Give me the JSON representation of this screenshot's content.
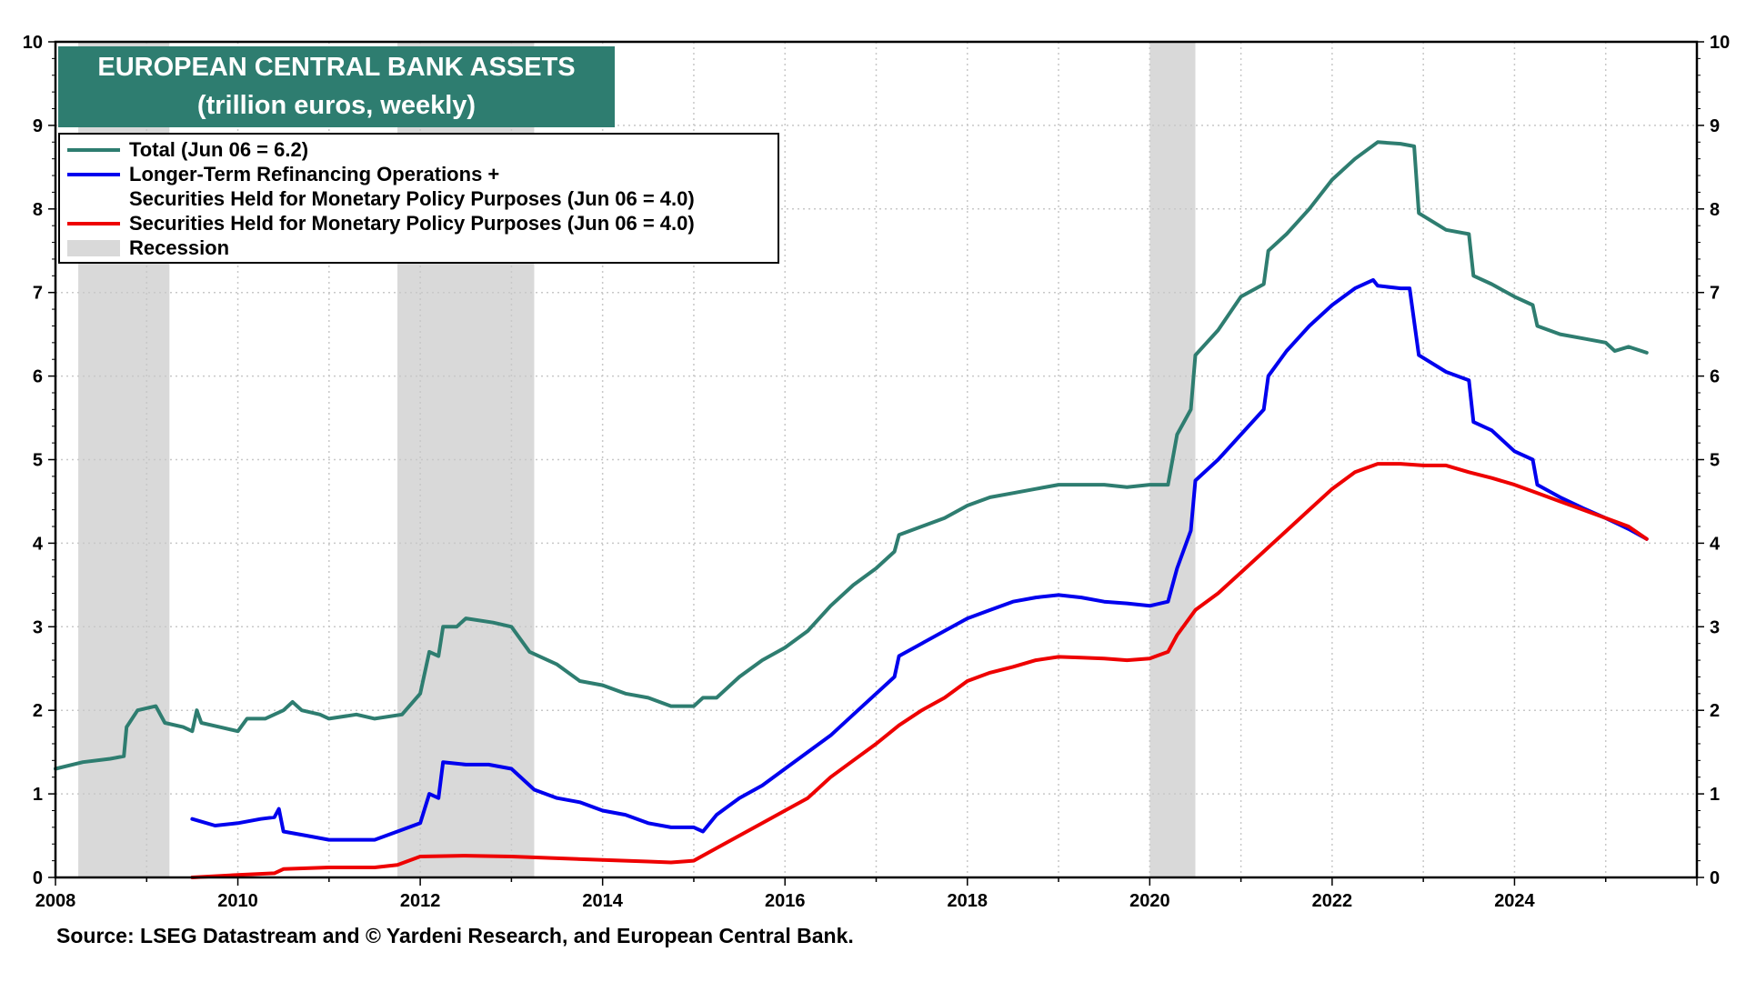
{
  "chart_data": {
    "type": "line",
    "title": "EUROPEAN CENTRAL BANK ASSETS",
    "subtitle": "(trillion euros, weekly)",
    "source": "Source: LSEG Datastream and © Yardeni Research, and European Central Bank.",
    "xlim": [
      2008,
      2026
    ],
    "ylim": [
      0,
      10
    ],
    "x_ticks": [
      "2008",
      "2010",
      "2012",
      "2014",
      "2016",
      "2018",
      "2020",
      "2022",
      "2024"
    ],
    "y_ticks": [
      "0",
      "1",
      "2",
      "3",
      "4",
      "5",
      "6",
      "7",
      "8",
      "9",
      "10"
    ],
    "grid": true,
    "legend_position": "top-left",
    "legend": [
      {
        "label": "Total (Jun 06 = 6.2)",
        "color": "#2e7d70",
        "kind": "line"
      },
      {
        "label": "Longer-Term Refinancing Operations +",
        "label2": "Securities Held for Monetary Policy Purposes (Jun 06 = 4.0)",
        "color": "#0000ee",
        "kind": "line"
      },
      {
        "label": "Securities Held for Monetary Policy Purposes (Jun 06 = 4.0)",
        "color": "#ee0000",
        "kind": "line"
      },
      {
        "label": "Recession",
        "color": "#d9d9d9",
        "kind": "box"
      }
    ],
    "recessions": [
      [
        2008.25,
        2009.25
      ],
      [
        2011.75,
        2013.25
      ],
      [
        2020.0,
        2020.5
      ]
    ],
    "series": [
      {
        "color": "#2e7d70",
        "points": [
          [
            2008.0,
            1.3
          ],
          [
            2008.3,
            1.38
          ],
          [
            2008.6,
            1.42
          ],
          [
            2008.75,
            1.45
          ],
          [
            2008.78,
            1.8
          ],
          [
            2008.9,
            2.0
          ],
          [
            2009.1,
            2.05
          ],
          [
            2009.2,
            1.85
          ],
          [
            2009.4,
            1.8
          ],
          [
            2009.5,
            1.75
          ],
          [
            2009.55,
            2.0
          ],
          [
            2009.6,
            1.85
          ],
          [
            2009.8,
            1.8
          ],
          [
            2010.0,
            1.75
          ],
          [
            2010.1,
            1.9
          ],
          [
            2010.3,
            1.9
          ],
          [
            2010.5,
            2.0
          ],
          [
            2010.6,
            2.1
          ],
          [
            2010.7,
            2.0
          ],
          [
            2010.9,
            1.95
          ],
          [
            2011.0,
            1.9
          ],
          [
            2011.3,
            1.95
          ],
          [
            2011.5,
            1.9
          ],
          [
            2011.8,
            1.95
          ],
          [
            2012.0,
            2.2
          ],
          [
            2012.1,
            2.7
          ],
          [
            2012.2,
            2.65
          ],
          [
            2012.25,
            3.0
          ],
          [
            2012.4,
            3.0
          ],
          [
            2012.5,
            3.1
          ],
          [
            2012.8,
            3.05
          ],
          [
            2013.0,
            3.0
          ],
          [
            2013.2,
            2.7
          ],
          [
            2013.5,
            2.55
          ],
          [
            2013.75,
            2.35
          ],
          [
            2014.0,
            2.3
          ],
          [
            2014.25,
            2.2
          ],
          [
            2014.5,
            2.15
          ],
          [
            2014.75,
            2.05
          ],
          [
            2015.0,
            2.05
          ],
          [
            2015.1,
            2.15
          ],
          [
            2015.25,
            2.15
          ],
          [
            2015.5,
            2.4
          ],
          [
            2015.75,
            2.6
          ],
          [
            2016.0,
            2.75
          ],
          [
            2016.25,
            2.95
          ],
          [
            2016.5,
            3.25
          ],
          [
            2016.75,
            3.5
          ],
          [
            2017.0,
            3.7
          ],
          [
            2017.2,
            3.9
          ],
          [
            2017.25,
            4.1
          ],
          [
            2017.5,
            4.2
          ],
          [
            2017.75,
            4.3
          ],
          [
            2018.0,
            4.45
          ],
          [
            2018.25,
            4.55
          ],
          [
            2018.5,
            4.6
          ],
          [
            2018.75,
            4.65
          ],
          [
            2019.0,
            4.7
          ],
          [
            2019.25,
            4.7
          ],
          [
            2019.5,
            4.7
          ],
          [
            2019.75,
            4.67
          ],
          [
            2020.0,
            4.7
          ],
          [
            2020.2,
            4.7
          ],
          [
            2020.3,
            5.3
          ],
          [
            2020.45,
            5.6
          ],
          [
            2020.5,
            6.25
          ],
          [
            2020.75,
            6.55
          ],
          [
            2021.0,
            6.95
          ],
          [
            2021.25,
            7.1
          ],
          [
            2021.3,
            7.5
          ],
          [
            2021.5,
            7.7
          ],
          [
            2021.75,
            8.0
          ],
          [
            2022.0,
            8.35
          ],
          [
            2022.25,
            8.6
          ],
          [
            2022.5,
            8.8
          ],
          [
            2022.75,
            8.78
          ],
          [
            2022.9,
            8.75
          ],
          [
            2022.95,
            7.95
          ],
          [
            2023.25,
            7.75
          ],
          [
            2023.5,
            7.7
          ],
          [
            2023.55,
            7.2
          ],
          [
            2023.75,
            7.1
          ],
          [
            2024.0,
            6.95
          ],
          [
            2024.2,
            6.85
          ],
          [
            2024.25,
            6.6
          ],
          [
            2024.5,
            6.5
          ],
          [
            2024.75,
            6.45
          ],
          [
            2025.0,
            6.4
          ],
          [
            2025.1,
            6.3
          ],
          [
            2025.25,
            6.35
          ],
          [
            2025.45,
            6.28
          ]
        ]
      },
      {
        "color": "#0000ee",
        "points": [
          [
            2009.5,
            0.7
          ],
          [
            2009.75,
            0.62
          ],
          [
            2010.0,
            0.65
          ],
          [
            2010.25,
            0.7
          ],
          [
            2010.4,
            0.72
          ],
          [
            2010.45,
            0.82
          ],
          [
            2010.5,
            0.55
          ],
          [
            2010.75,
            0.5
          ],
          [
            2011.0,
            0.45
          ],
          [
            2011.25,
            0.45
          ],
          [
            2011.5,
            0.45
          ],
          [
            2011.75,
            0.55
          ],
          [
            2012.0,
            0.65
          ],
          [
            2012.1,
            1.0
          ],
          [
            2012.2,
            0.95
          ],
          [
            2012.25,
            1.38
          ],
          [
            2012.5,
            1.35
          ],
          [
            2012.75,
            1.35
          ],
          [
            2013.0,
            1.3
          ],
          [
            2013.25,
            1.05
          ],
          [
            2013.5,
            0.95
          ],
          [
            2013.75,
            0.9
          ],
          [
            2014.0,
            0.8
          ],
          [
            2014.25,
            0.75
          ],
          [
            2014.5,
            0.65
          ],
          [
            2014.75,
            0.6
          ],
          [
            2015.0,
            0.6
          ],
          [
            2015.1,
            0.55
          ],
          [
            2015.25,
            0.75
          ],
          [
            2015.5,
            0.95
          ],
          [
            2015.75,
            1.1
          ],
          [
            2016.0,
            1.3
          ],
          [
            2016.25,
            1.5
          ],
          [
            2016.5,
            1.7
          ],
          [
            2016.75,
            1.95
          ],
          [
            2017.0,
            2.2
          ],
          [
            2017.2,
            2.4
          ],
          [
            2017.25,
            2.65
          ],
          [
            2017.5,
            2.8
          ],
          [
            2017.75,
            2.95
          ],
          [
            2018.0,
            3.1
          ],
          [
            2018.25,
            3.2
          ],
          [
            2018.5,
            3.3
          ],
          [
            2018.75,
            3.35
          ],
          [
            2019.0,
            3.38
          ],
          [
            2019.25,
            3.35
          ],
          [
            2019.5,
            3.3
          ],
          [
            2019.75,
            3.28
          ],
          [
            2020.0,
            3.25
          ],
          [
            2020.2,
            3.3
          ],
          [
            2020.3,
            3.7
          ],
          [
            2020.45,
            4.15
          ],
          [
            2020.5,
            4.75
          ],
          [
            2020.75,
            5.0
          ],
          [
            2021.0,
            5.3
          ],
          [
            2021.25,
            5.6
          ],
          [
            2021.3,
            6.0
          ],
          [
            2021.5,
            6.3
          ],
          [
            2021.75,
            6.6
          ],
          [
            2022.0,
            6.85
          ],
          [
            2022.25,
            7.05
          ],
          [
            2022.45,
            7.15
          ],
          [
            2022.5,
            7.08
          ],
          [
            2022.75,
            7.05
          ],
          [
            2022.85,
            7.05
          ],
          [
            2022.95,
            6.25
          ],
          [
            2023.25,
            6.05
          ],
          [
            2023.5,
            5.95
          ],
          [
            2023.55,
            5.45
          ],
          [
            2023.75,
            5.35
          ],
          [
            2024.0,
            5.1
          ],
          [
            2024.2,
            5.0
          ],
          [
            2024.25,
            4.7
          ],
          [
            2024.5,
            4.55
          ],
          [
            2024.75,
            4.42
          ],
          [
            2025.0,
            4.3
          ],
          [
            2025.25,
            4.17
          ],
          [
            2025.45,
            4.05
          ]
        ]
      },
      {
        "color": "#ee0000",
        "points": [
          [
            2009.5,
            0.0
          ],
          [
            2010.0,
            0.03
          ],
          [
            2010.4,
            0.05
          ],
          [
            2010.5,
            0.1
          ],
          [
            2011.0,
            0.12
          ],
          [
            2011.5,
            0.12
          ],
          [
            2011.75,
            0.15
          ],
          [
            2012.0,
            0.25
          ],
          [
            2012.5,
            0.26
          ],
          [
            2013.0,
            0.25
          ],
          [
            2013.5,
            0.23
          ],
          [
            2014.0,
            0.21
          ],
          [
            2014.5,
            0.19
          ],
          [
            2014.75,
            0.18
          ],
          [
            2015.0,
            0.2
          ],
          [
            2015.25,
            0.35
          ],
          [
            2015.5,
            0.5
          ],
          [
            2015.75,
            0.65
          ],
          [
            2016.0,
            0.8
          ],
          [
            2016.25,
            0.95
          ],
          [
            2016.5,
            1.2
          ],
          [
            2016.75,
            1.4
          ],
          [
            2017.0,
            1.6
          ],
          [
            2017.25,
            1.82
          ],
          [
            2017.5,
            2.0
          ],
          [
            2017.75,
            2.15
          ],
          [
            2018.0,
            2.35
          ],
          [
            2018.25,
            2.45
          ],
          [
            2018.5,
            2.52
          ],
          [
            2018.75,
            2.6
          ],
          [
            2019.0,
            2.64
          ],
          [
            2019.25,
            2.63
          ],
          [
            2019.5,
            2.62
          ],
          [
            2019.75,
            2.6
          ],
          [
            2020.0,
            2.62
          ],
          [
            2020.2,
            2.7
          ],
          [
            2020.3,
            2.9
          ],
          [
            2020.5,
            3.2
          ],
          [
            2020.75,
            3.4
          ],
          [
            2021.0,
            3.65
          ],
          [
            2021.25,
            3.9
          ],
          [
            2021.5,
            4.15
          ],
          [
            2021.75,
            4.4
          ],
          [
            2022.0,
            4.65
          ],
          [
            2022.25,
            4.85
          ],
          [
            2022.5,
            4.95
          ],
          [
            2022.75,
            4.95
          ],
          [
            2023.0,
            4.93
          ],
          [
            2023.25,
            4.93
          ],
          [
            2023.5,
            4.85
          ],
          [
            2023.75,
            4.78
          ],
          [
            2024.0,
            4.7
          ],
          [
            2024.25,
            4.6
          ],
          [
            2024.5,
            4.5
          ],
          [
            2024.75,
            4.4
          ],
          [
            2025.0,
            4.3
          ],
          [
            2025.25,
            4.2
          ],
          [
            2025.45,
            4.05
          ]
        ]
      }
    ]
  }
}
